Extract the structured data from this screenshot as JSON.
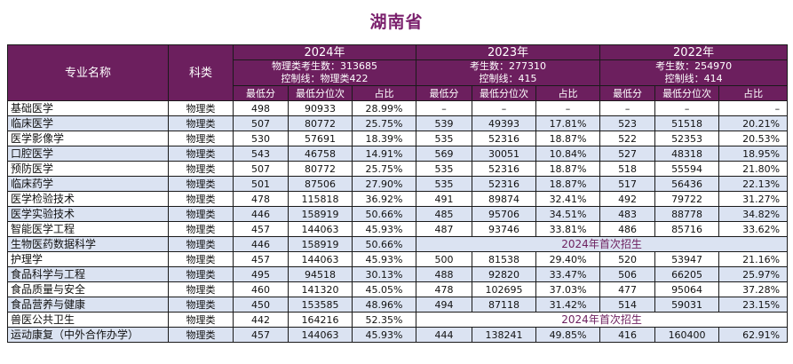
{
  "title": "湖南省",
  "header": {
    "major": "专业名称",
    "category": "科类",
    "years": [
      {
        "year": "2024年",
        "line1": "物理类考生数：313685",
        "line2": "控制线：物理类422"
      },
      {
        "year": "2023年",
        "line1": "考生数：277310",
        "line2": "控制线：415"
      },
      {
        "year": "2022年",
        "line1": "考生数：254970",
        "line2": "控制线：414"
      }
    ],
    "sub": [
      "最低分",
      "最低分位次",
      "占比"
    ]
  },
  "notice_text": "2024年首次招生",
  "rows": [
    {
      "name": "基础医学",
      "cat": "物理类",
      "y2024": [
        "498",
        "90933",
        "28.99%"
      ],
      "y2023": [
        "–",
        "–",
        "–"
      ],
      "y2022": [
        "–",
        "–",
        "–"
      ]
    },
    {
      "name": "临床医学",
      "cat": "物理类",
      "y2024": [
        "507",
        "80772",
        "25.75%"
      ],
      "y2023": [
        "539",
        "49393",
        "17.81%"
      ],
      "y2022": [
        "523",
        "51518",
        "20.21%"
      ]
    },
    {
      "name": "医学影像学",
      "cat": "物理类",
      "y2024": [
        "530",
        "57691",
        "18.39%"
      ],
      "y2023": [
        "535",
        "52316",
        "18.87%"
      ],
      "y2022": [
        "522",
        "52353",
        "20.53%"
      ]
    },
    {
      "name": "口腔医学",
      "cat": "物理类",
      "y2024": [
        "543",
        "46758",
        "14.91%"
      ],
      "y2023": [
        "569",
        "30051",
        "10.84%"
      ],
      "y2022": [
        "527",
        "48318",
        "18.95%"
      ]
    },
    {
      "name": "预防医学",
      "cat": "物理类",
      "y2024": [
        "507",
        "80772",
        "25.75%"
      ],
      "y2023": [
        "535",
        "52316",
        "18.87%"
      ],
      "y2022": [
        "518",
        "55594",
        "21.80%"
      ]
    },
    {
      "name": "临床药学",
      "cat": "物理类",
      "y2024": [
        "501",
        "87506",
        "27.90%"
      ],
      "y2023": [
        "535",
        "52316",
        "18.87%"
      ],
      "y2022": [
        "517",
        "56436",
        "22.13%"
      ]
    },
    {
      "name": "医学检验技术",
      "cat": "物理类",
      "y2024": [
        "478",
        "115818",
        "36.92%"
      ],
      "y2023": [
        "491",
        "89874",
        "32.41%"
      ],
      "y2022": [
        "492",
        "79722",
        "31.27%"
      ]
    },
    {
      "name": "医学实验技术",
      "cat": "物理类",
      "y2024": [
        "446",
        "158919",
        "50.66%"
      ],
      "y2023": [
        "485",
        "95706",
        "34.51%"
      ],
      "y2022": [
        "483",
        "88778",
        "34.82%"
      ]
    },
    {
      "name": "智能医学工程",
      "cat": "物理类",
      "y2024": [
        "457",
        "144063",
        "45.93%"
      ],
      "y2023": [
        "487",
        "93746",
        "33.81%"
      ],
      "y2022": [
        "486",
        "85716",
        "33.62%"
      ]
    },
    {
      "name": "生物医药数据科学",
      "cat": "物理类",
      "y2024": [
        "446",
        "158919",
        "50.66%"
      ],
      "notice": true
    },
    {
      "name": "护理学",
      "cat": "物理类",
      "y2024": [
        "457",
        "144063",
        "45.93%"
      ],
      "y2023": [
        "500",
        "81538",
        "29.40%"
      ],
      "y2022": [
        "520",
        "53947",
        "21.16%"
      ]
    },
    {
      "name": "食品科学与工程",
      "cat": "物理类",
      "y2024": [
        "495",
        "94518",
        "30.13%"
      ],
      "y2023": [
        "488",
        "92820",
        "33.47%"
      ],
      "y2022": [
        "506",
        "66205",
        "25.97%"
      ]
    },
    {
      "name": "食品质量与安全",
      "cat": "物理类",
      "y2024": [
        "460",
        "141320",
        "45.05%"
      ],
      "y2023": [
        "478",
        "102695",
        "37.03%"
      ],
      "y2022": [
        "477",
        "95064",
        "37.28%"
      ]
    },
    {
      "name": "食品营养与健康",
      "cat": "物理类",
      "y2024": [
        "450",
        "153585",
        "48.96%"
      ],
      "y2023": [
        "494",
        "87118",
        "31.42%"
      ],
      "y2022": [
        "514",
        "59031",
        "23.15%"
      ]
    },
    {
      "name": "兽医公共卫生",
      "cat": "物理类",
      "y2024": [
        "442",
        "164216",
        "52.35%"
      ],
      "notice": true
    },
    {
      "name": "运动康复（中外合作办学）",
      "cat": "物理类",
      "y2024": [
        "457",
        "144063",
        "45.93%"
      ],
      "y2023": [
        "444",
        "138241",
        "49.85%"
      ],
      "y2022": [
        "416",
        "160400",
        "62.91%"
      ]
    }
  ]
}
